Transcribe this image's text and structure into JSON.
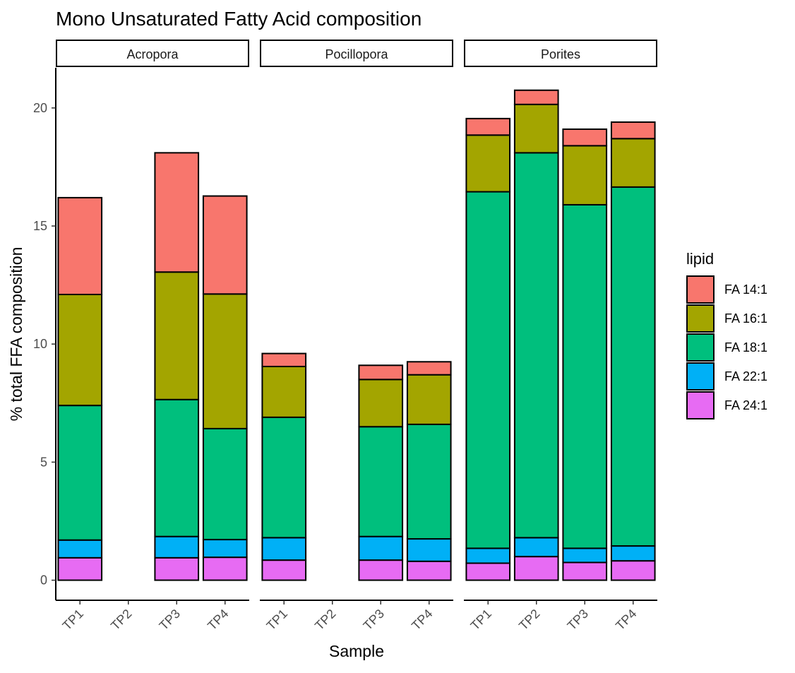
{
  "chart_data": {
    "type": "bar",
    "stacked": true,
    "title": "Mono Unsaturated Fatty Acid composition",
    "xlabel": "Sample",
    "ylabel": "% total FFA composition",
    "ylim": [
      0,
      21.7
    ],
    "yticks": [
      0,
      5,
      10,
      15,
      20
    ],
    "grid": false,
    "legend": {
      "title": "lipid",
      "position": "right",
      "entries": [
        "FA 14:1",
        "FA 16:1",
        "FA 18:1",
        "FA 22:1",
        "FA 24:1"
      ]
    },
    "colors": {
      "FA 14:1": "#F8766D",
      "FA 16:1": "#A3A500",
      "FA 18:1": "#00BF7D",
      "FA 22:1": "#00B0F6",
      "FA 24:1": "#E76BF3"
    },
    "categories": [
      "TP1",
      "TP2",
      "TP3",
      "TP4"
    ],
    "panels": [
      {
        "name": "Acropora",
        "bars": [
          {
            "sample": "TP1",
            "FA 24:1": 0.95,
            "FA 22:1": 0.75,
            "FA 18:1": 5.7,
            "FA 16:1": 4.7,
            "FA 14:1": 4.1
          },
          {
            "sample": "TP3",
            "FA 24:1": 0.95,
            "FA 22:1": 0.9,
            "FA 18:1": 5.8,
            "FA 16:1": 5.4,
            "FA 14:1": 5.05
          },
          {
            "sample": "TP4",
            "FA 24:1": 0.97,
            "FA 22:1": 0.75,
            "FA 18:1": 4.7,
            "FA 16:1": 5.7,
            "FA 14:1": 4.15
          }
        ]
      },
      {
        "name": "Pocillopora",
        "bars": [
          {
            "sample": "TP1",
            "FA 24:1": 0.85,
            "FA 22:1": 0.95,
            "FA 18:1": 5.1,
            "FA 16:1": 2.15,
            "FA 14:1": 0.55
          },
          {
            "sample": "TP3",
            "FA 24:1": 0.85,
            "FA 22:1": 1.0,
            "FA 18:1": 4.65,
            "FA 16:1": 2.0,
            "FA 14:1": 0.6
          },
          {
            "sample": "TP4",
            "FA 24:1": 0.8,
            "FA 22:1": 0.95,
            "FA 18:1": 4.85,
            "FA 16:1": 2.1,
            "FA 14:1": 0.55
          }
        ]
      },
      {
        "name": "Porites",
        "bars": [
          {
            "sample": "TP1",
            "FA 24:1": 0.72,
            "FA 22:1": 0.63,
            "FA 18:1": 15.1,
            "FA 16:1": 2.4,
            "FA 14:1": 0.7
          },
          {
            "sample": "TP2",
            "FA 24:1": 1.0,
            "FA 22:1": 0.8,
            "FA 18:1": 16.3,
            "FA 16:1": 2.05,
            "FA 14:1": 0.6
          },
          {
            "sample": "TP3",
            "FA 24:1": 0.75,
            "FA 22:1": 0.6,
            "FA 18:1": 14.55,
            "FA 16:1": 2.5,
            "FA 14:1": 0.7
          },
          {
            "sample": "TP4",
            "FA 24:1": 0.82,
            "FA 22:1": 0.63,
            "FA 18:1": 15.2,
            "FA 16:1": 2.05,
            "FA 14:1": 0.7
          }
        ]
      }
    ]
  }
}
